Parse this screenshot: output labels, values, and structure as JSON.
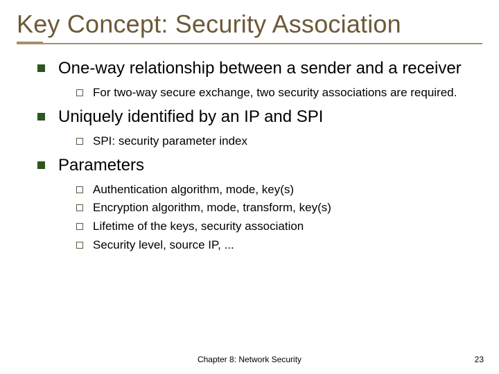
{
  "title": "Key Concept: Security Association",
  "colors": {
    "title_text": "#6b5938",
    "underline": "#a29069",
    "l1_bullet": "#2b561f",
    "l2_bullet_border": "#64543b",
    "body_text": "#000000",
    "background": "#ffffff"
  },
  "typography": {
    "title_fontsize": 36,
    "l1_fontsize": 24,
    "l2_fontsize": 17,
    "footer_fontsize": 12,
    "font_family": "Arial"
  },
  "bullets": [
    {
      "text": "One-way relationship between a sender and a receiver",
      "sub": [
        "For two-way secure exchange, two security associations are required."
      ]
    },
    {
      "text": "Uniquely identified by an IP and SPI",
      "sub": [
        "SPI: security parameter index"
      ]
    },
    {
      "text": "Parameters",
      "sub": [
        "Authentication algorithm, mode, key(s)",
        "Encryption algorithm, mode, transform, key(s)",
        "Lifetime of the keys, security association",
        "Security level, source IP, ..."
      ]
    }
  ],
  "footer": {
    "center": "Chapter 8: Network Security",
    "page": "23"
  }
}
